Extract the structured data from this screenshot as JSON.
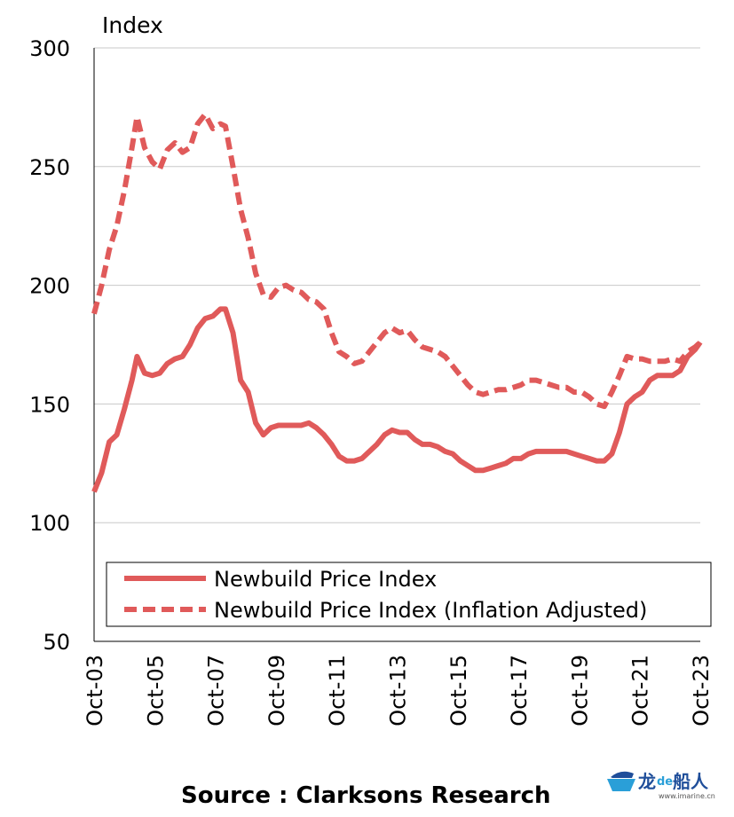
{
  "chart_data": {
    "type": "line",
    "ylabel": "Index",
    "ylim": [
      50,
      300
    ],
    "yticks": [
      300,
      250,
      200,
      150,
      100,
      50
    ],
    "xlim": [
      "2003-10",
      "2023-10"
    ],
    "xticks": [
      "Oct-03",
      "Oct-05",
      "Oct-07",
      "Oct-09",
      "Oct-11",
      "Oct-13",
      "Oct-15",
      "Oct-17",
      "Oct-19",
      "Oct-21",
      "Oct-23"
    ],
    "grid": "horizontal",
    "legend_position": "bottom-right",
    "source": "Source : Clarksons Research",
    "color": "#e05a5a",
    "series": [
      {
        "name": "Newbuild Price Index",
        "style": "solid",
        "points": [
          [
            "2003-10",
            113
          ],
          [
            "2004-01",
            121
          ],
          [
            "2004-04",
            134
          ],
          [
            "2004-07",
            137
          ],
          [
            "2004-10",
            148
          ],
          [
            "2005-01",
            160
          ],
          [
            "2005-03",
            170
          ],
          [
            "2005-06",
            163
          ],
          [
            "2005-09",
            162
          ],
          [
            "2005-12",
            163
          ],
          [
            "2006-03",
            167
          ],
          [
            "2006-06",
            169
          ],
          [
            "2006-09",
            170
          ],
          [
            "2006-12",
            175
          ],
          [
            "2007-03",
            182
          ],
          [
            "2007-06",
            186
          ],
          [
            "2007-09",
            187
          ],
          [
            "2007-12",
            190
          ],
          [
            "2008-02",
            190
          ],
          [
            "2008-05",
            180
          ],
          [
            "2008-08",
            160
          ],
          [
            "2008-11",
            155
          ],
          [
            "2009-02",
            142
          ],
          [
            "2009-05",
            137
          ],
          [
            "2009-08",
            140
          ],
          [
            "2009-11",
            141
          ],
          [
            "2010-02",
            141
          ],
          [
            "2010-05",
            141
          ],
          [
            "2010-08",
            141
          ],
          [
            "2010-11",
            142
          ],
          [
            "2011-02",
            140
          ],
          [
            "2011-05",
            137
          ],
          [
            "2011-08",
            133
          ],
          [
            "2011-11",
            128
          ],
          [
            "2012-02",
            126
          ],
          [
            "2012-05",
            126
          ],
          [
            "2012-08",
            127
          ],
          [
            "2012-11",
            130
          ],
          [
            "2013-02",
            133
          ],
          [
            "2013-05",
            137
          ],
          [
            "2013-08",
            139
          ],
          [
            "2013-11",
            138
          ],
          [
            "2014-02",
            138
          ],
          [
            "2014-05",
            135
          ],
          [
            "2014-08",
            133
          ],
          [
            "2014-11",
            133
          ],
          [
            "2015-02",
            132
          ],
          [
            "2015-05",
            130
          ],
          [
            "2015-08",
            129
          ],
          [
            "2015-11",
            126
          ],
          [
            "2016-02",
            124
          ],
          [
            "2016-05",
            122
          ],
          [
            "2016-08",
            122
          ],
          [
            "2016-11",
            123
          ],
          [
            "2017-02",
            124
          ],
          [
            "2017-05",
            125
          ],
          [
            "2017-08",
            127
          ],
          [
            "2017-11",
            127
          ],
          [
            "2018-02",
            129
          ],
          [
            "2018-05",
            130
          ],
          [
            "2018-08",
            130
          ],
          [
            "2018-11",
            130
          ],
          [
            "2019-02",
            130
          ],
          [
            "2019-05",
            130
          ],
          [
            "2019-08",
            129
          ],
          [
            "2019-11",
            128
          ],
          [
            "2020-02",
            127
          ],
          [
            "2020-05",
            126
          ],
          [
            "2020-08",
            126
          ],
          [
            "2020-11",
            129
          ],
          [
            "2021-02",
            138
          ],
          [
            "2021-05",
            150
          ],
          [
            "2021-08",
            153
          ],
          [
            "2021-11",
            155
          ],
          [
            "2022-02",
            160
          ],
          [
            "2022-05",
            162
          ],
          [
            "2022-08",
            162
          ],
          [
            "2022-11",
            162
          ],
          [
            "2023-02",
            164
          ],
          [
            "2023-05",
            170
          ],
          [
            "2023-08",
            173
          ],
          [
            "2023-10",
            176
          ]
        ]
      },
      {
        "name": "Newbuild Price Index (Inflation Adjusted)",
        "style": "dashed",
        "points": [
          [
            "2003-10",
            188
          ],
          [
            "2004-01",
            200
          ],
          [
            "2004-04",
            215
          ],
          [
            "2004-07",
            225
          ],
          [
            "2004-10",
            240
          ],
          [
            "2005-01",
            258
          ],
          [
            "2005-03",
            271
          ],
          [
            "2005-06",
            258
          ],
          [
            "2005-09",
            252
          ],
          [
            "2005-12",
            249
          ],
          [
            "2006-03",
            257
          ],
          [
            "2006-06",
            260
          ],
          [
            "2006-09",
            256
          ],
          [
            "2006-12",
            258
          ],
          [
            "2007-03",
            268
          ],
          [
            "2007-06",
            272
          ],
          [
            "2007-09",
            266
          ],
          [
            "2007-12",
            268
          ],
          [
            "2008-02",
            267
          ],
          [
            "2008-05",
            250
          ],
          [
            "2008-08",
            232
          ],
          [
            "2008-11",
            220
          ],
          [
            "2009-02",
            205
          ],
          [
            "2009-05",
            196
          ],
          [
            "2009-08",
            195
          ],
          [
            "2009-11",
            199
          ],
          [
            "2010-02",
            200
          ],
          [
            "2010-05",
            198
          ],
          [
            "2010-08",
            197
          ],
          [
            "2010-11",
            194
          ],
          [
            "2011-02",
            193
          ],
          [
            "2011-05",
            190
          ],
          [
            "2011-08",
            180
          ],
          [
            "2011-11",
            172
          ],
          [
            "2012-02",
            170
          ],
          [
            "2012-05",
            167
          ],
          [
            "2012-08",
            168
          ],
          [
            "2012-11",
            172
          ],
          [
            "2013-02",
            176
          ],
          [
            "2013-05",
            180
          ],
          [
            "2013-08",
            182
          ],
          [
            "2013-11",
            180
          ],
          [
            "2014-02",
            181
          ],
          [
            "2014-05",
            177
          ],
          [
            "2014-08",
            174
          ],
          [
            "2014-11",
            173
          ],
          [
            "2015-02",
            172
          ],
          [
            "2015-05",
            170
          ],
          [
            "2015-08",
            166
          ],
          [
            "2015-11",
            162
          ],
          [
            "2016-02",
            158
          ],
          [
            "2016-05",
            155
          ],
          [
            "2016-08",
            154
          ],
          [
            "2016-11",
            155
          ],
          [
            "2017-02",
            156
          ],
          [
            "2017-05",
            156
          ],
          [
            "2017-08",
            157
          ],
          [
            "2017-11",
            158
          ],
          [
            "2018-02",
            160
          ],
          [
            "2018-05",
            160
          ],
          [
            "2018-08",
            159
          ],
          [
            "2018-11",
            158
          ],
          [
            "2019-02",
            157
          ],
          [
            "2019-05",
            157
          ],
          [
            "2019-08",
            155
          ],
          [
            "2019-11",
            155
          ],
          [
            "2020-02",
            153
          ],
          [
            "2020-05",
            150
          ],
          [
            "2020-08",
            149
          ],
          [
            "2020-11",
            155
          ],
          [
            "2021-02",
            162
          ],
          [
            "2021-05",
            170
          ],
          [
            "2021-08",
            169
          ],
          [
            "2021-11",
            169
          ],
          [
            "2022-02",
            168
          ],
          [
            "2022-05",
            168
          ],
          [
            "2022-08",
            168
          ],
          [
            "2022-11",
            169
          ],
          [
            "2023-02",
            168
          ],
          [
            "2023-05",
            172
          ],
          [
            "2023-08",
            174
          ],
          [
            "2023-10",
            176
          ]
        ]
      }
    ]
  },
  "watermark": {
    "text_main": "龙",
    "text_de": "de",
    "text_end": "船人",
    "url": "www.imarine.cn"
  }
}
